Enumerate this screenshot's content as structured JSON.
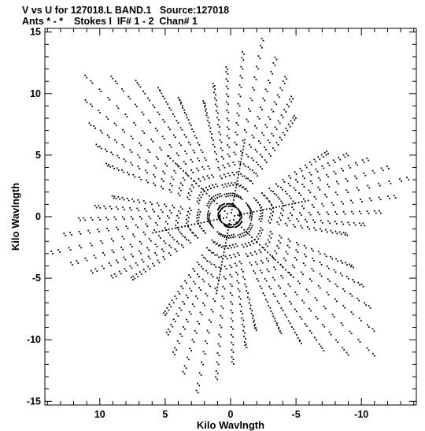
{
  "header": {
    "line1": "V vs U for 127018.L BAND.1   Source:127018",
    "line2": "Ants * - *    Stokes I  IF# 1 - 2  Chan# 1"
  },
  "chart_data": {
    "type": "scatter",
    "title": "V vs U for 127018.L BAND.1   Source:127018",
    "subtitle": "Ants * - *    Stokes I  IF# 1 - 2  Chan# 1",
    "xlabel": "Kilo Wavlngth",
    "ylabel": "Kilo Wavlngth",
    "xlim": [
      14.2,
      -14.2
    ],
    "ylim": [
      -15.3,
      15.3
    ],
    "x_reversed": true,
    "x_ticks": [
      10,
      5,
      0,
      -5,
      -10
    ],
    "y_ticks": [
      15,
      10,
      5,
      0,
      -5,
      -10,
      -15
    ],
    "grid": false,
    "marker_color": "#000000",
    "arms": [
      {
        "x": -2.5,
        "y": 14.3
      },
      {
        "x": 11.0,
        "y": 11.3
      },
      {
        "x": -13.6,
        "y": 3.0
      },
      {
        "x": 13.6,
        "y": -3.0
      },
      {
        "x": -11.0,
        "y": -11.3
      },
      {
        "x": 2.5,
        "y": -14.3
      }
    ],
    "baseline_fractions": [
      0.06,
      0.12,
      0.18,
      0.24,
      0.3,
      0.36,
      0.42,
      0.48,
      0.54,
      0.6,
      0.66,
      0.72,
      0.78,
      0.84,
      0.9,
      0.96,
      1.0
    ],
    "track_half_length_deg": 22,
    "points_per_track": 9
  }
}
